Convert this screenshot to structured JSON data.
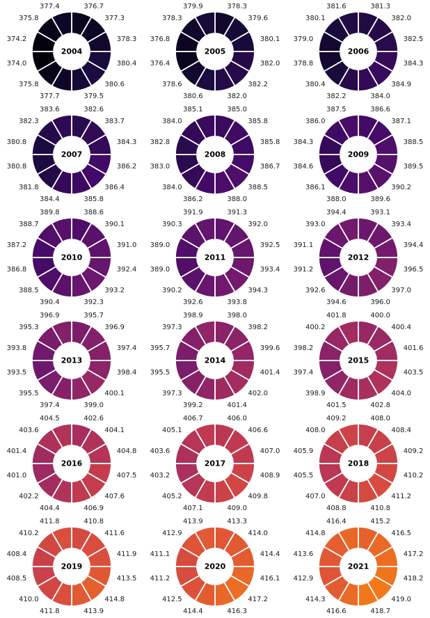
{
  "chart_data": {
    "type": "pie",
    "variant": "donut-grid",
    "title": "",
    "layout_hints": {
      "grid_rows": 6,
      "grid_cols": 3,
      "segments_per_donut": 12,
      "segment_start": "12 o'clock",
      "direction": "clockwise",
      "center_label": "year",
      "value_labels": "outside each segment, one decimal place",
      "legend": "none",
      "background": "#ffffff"
    },
    "color_scale": {
      "name": "inferno-like (dark purple to orange by value)",
      "stops": [
        "#000004",
        "#160b39",
        "#420a68",
        "#6a176e",
        "#932667",
        "#bc3754",
        "#dd513a",
        "#f37819",
        "#fca50a",
        "#f6d746",
        "#fcffa4"
      ],
      "value_min": 374.0,
      "value_max": 419.0,
      "t_min": 0.01,
      "t_max": 0.7
    },
    "years": [
      {
        "label": "2004",
        "values": [
          "376.7",
          "377.3",
          "378.3",
          "380.4",
          "380.6",
          "379.5",
          "377.7",
          "375.8",
          "374.0",
          "374.2",
          "375.8",
          "377.4"
        ]
      },
      {
        "label": "2005",
        "values": [
          "378.3",
          "379.6",
          "380.1",
          "382.0",
          "382.2",
          "382.0",
          "380.6",
          "378.6",
          "376.4",
          "376.8",
          "378.3",
          "379.9"
        ]
      },
      {
        "label": "2006",
        "values": [
          "381.3",
          "382.0",
          "382.5",
          "384.3",
          "384.9",
          "384.0",
          "382.2",
          "380.4",
          "378.8",
          "379.0",
          "380.1",
          "381.6"
        ]
      },
      {
        "label": "2007",
        "values": [
          "382.6",
          "383.7",
          "384.3",
          "386.2",
          "386.4",
          "385.8",
          "384.4",
          "381.8",
          "380.8",
          "380.8",
          "382.3",
          "383.6"
        ]
      },
      {
        "label": "2008",
        "values": [
          "385.0",
          "385.8",
          "385.8",
          "386.7",
          "388.5",
          "388.0",
          "386.2",
          "384.0",
          "383.0",
          "382.8",
          "384.0",
          "385.1"
        ]
      },
      {
        "label": "2009",
        "values": [
          "386.6",
          "387.1",
          "388.5",
          "389.5",
          "390.2",
          "389.6",
          "388.0",
          "386.1",
          "384.6",
          "384.3",
          "386.0",
          "387.5"
        ]
      },
      {
        "label": "2010",
        "values": [
          "388.6",
          "390.1",
          "391.0",
          "392.4",
          "393.2",
          "392.3",
          "390.4",
          "388.5",
          "386.8",
          "387.2",
          "388.7",
          "389.8"
        ]
      },
      {
        "label": "2011",
        "values": [
          "391.3",
          "392.0",
          "392.5",
          "393.4",
          "394.3",
          "393.8",
          "392.6",
          "390.2",
          "389.0",
          "389.0",
          "390.3",
          "391.9"
        ]
      },
      {
        "label": "2012",
        "values": [
          "393.1",
          "393.4",
          "394.4",
          "396.5",
          "397.0",
          "396.0",
          "394.6",
          "392.6",
          "391.2",
          "391.1",
          "393.0",
          "394.4"
        ]
      },
      {
        "label": "2013",
        "values": [
          "395.7",
          "396.9",
          "397.4",
          "398.4",
          "400.1",
          "399.0",
          "397.4",
          "395.5",
          "393.5",
          "393.8",
          "395.3",
          "396.9"
        ]
      },
      {
        "label": "2014",
        "values": [
          "398.0",
          "398.2",
          "399.6",
          "401.4",
          "402.0",
          "401.4",
          "399.2",
          "397.3",
          "395.5",
          "395.7",
          "397.3",
          "398.9"
        ]
      },
      {
        "label": "2015",
        "values": [
          "400.0",
          "400.4",
          "401.6",
          "403.5",
          "404.0",
          "402.8",
          "401.5",
          "398.9",
          "397.4",
          "398.2",
          "400.2",
          "401.8"
        ]
      },
      {
        "label": "2016",
        "values": [
          "402.6",
          "404.1",
          "404.8",
          "407.5",
          "407.6",
          "406.9",
          "404.4",
          "402.2",
          "401.0",
          "401.4",
          "403.6",
          "404.5"
        ]
      },
      {
        "label": "2017",
        "values": [
          "406.0",
          "406.6",
          "407.0",
          "408.9",
          "409.8",
          "409.0",
          "407.1",
          "405.2",
          "403.2",
          "403.6",
          "405.1",
          "406.7"
        ]
      },
      {
        "label": "2018",
        "values": [
          "408.0",
          "408.4",
          "409.2",
          "410.2",
          "411.2",
          "410.8",
          "408.8",
          "407.0",
          "405.5",
          "405.9",
          "408.0",
          "409.2"
        ]
      },
      {
        "label": "2019",
        "values": [
          "410.8",
          "411.6",
          "411.9",
          "413.5",
          "414.8",
          "413.9",
          "411.8",
          "410.0",
          "408.5",
          "408.4",
          "410.2",
          "411.8"
        ]
      },
      {
        "label": "2020",
        "values": [
          "413.3",
          "414.0",
          "414.4",
          "416.1",
          "417.2",
          "416.3",
          "414.4",
          "412.5",
          "411.2",
          "411.1",
          "412.9",
          "413.9"
        ]
      },
      {
        "label": "2021",
        "values": [
          "415.2",
          "416.5",
          "417.2",
          "418.2",
          "419.0",
          "418.7",
          "416.6",
          "414.3",
          "412.9",
          "413.6",
          "414.8",
          "416.4"
        ]
      }
    ]
  },
  "styles": {
    "background": "#ffffff",
    "divider_color": "#ffffff",
    "value_label_color": "#1a1a1a",
    "year_label_color": "#000000"
  }
}
